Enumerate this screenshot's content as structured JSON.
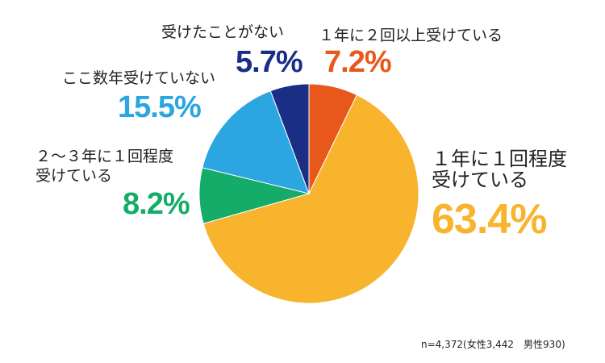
{
  "chart_data": {
    "type": "pie",
    "slices": [
      {
        "label": "１年に２回以上受けている",
        "value": 7.2,
        "display": "7.2%",
        "color": "#E8581A"
      },
      {
        "label": "１年に１回程度受けている",
        "line1": "１年に１回程度",
        "line2": "受けている",
        "value": 63.4,
        "display": "63.4%",
        "color": "#F7B42C"
      },
      {
        "label": "２～３年に１回程度受けている",
        "line1": "２～３年に１回程度",
        "line2": "受けている",
        "value": 8.2,
        "display": "8.2%",
        "color": "#15AB68"
      },
      {
        "label": "ここ数年受けていない",
        "value": 15.5,
        "display": "15.5%",
        "color": "#2CA6E0"
      },
      {
        "label": "受けたことがない",
        "value": 5.7,
        "display": "5.7%",
        "color": "#1A2E86"
      }
    ],
    "note": "n=4,372(女性3,442　男性930)"
  }
}
